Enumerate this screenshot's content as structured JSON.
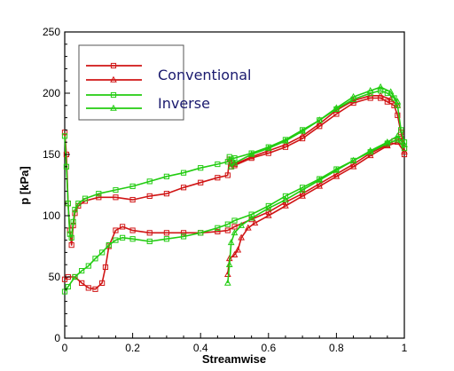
{
  "chart_data": {
    "type": "line",
    "xlabel": "Streamwise",
    "ylabel": "p [kPa]",
    "xlim": [
      0,
      1
    ],
    "ylim": [
      0,
      250
    ],
    "xticks": [
      0,
      0.2,
      0.4,
      0.6,
      0.8,
      1
    ],
    "xtick_labels": [
      "0",
      "0.2",
      "0.4",
      "0.6",
      "0.8",
      "1"
    ],
    "yticks": [
      0,
      50,
      100,
      150,
      200,
      250
    ],
    "ytick_labels": [
      "0",
      "50",
      "100",
      "150",
      "200",
      "250"
    ],
    "grid": false,
    "legend_position": "top-left",
    "colors": {
      "Conventional": "#d01515",
      "Inverse": "#22cc11"
    },
    "legend": [
      {
        "label": "Conventional",
        "entries": [
          {
            "color": "#d01515",
            "marker": "square"
          },
          {
            "color": "#d01515",
            "marker": "triangle"
          }
        ]
      },
      {
        "label": "Inverse",
        "entries": [
          {
            "color": "#22cc11",
            "marker": "square"
          },
          {
            "color": "#22cc11",
            "marker": "triangle"
          }
        ]
      }
    ],
    "series": [
      {
        "color": "#d01515",
        "marker": "square",
        "points": [
          [
            0,
            168
          ],
          [
            0.005,
            150
          ],
          [
            0.01,
            110
          ],
          [
            0.015,
            88
          ],
          [
            0.02,
            76
          ],
          [
            0.025,
            92
          ],
          [
            0.03,
            102
          ],
          [
            0.04,
            108
          ],
          [
            0.06,
            112
          ],
          [
            0.1,
            115
          ],
          [
            0.15,
            115
          ],
          [
            0.2,
            113
          ],
          [
            0.25,
            116
          ],
          [
            0.3,
            118
          ],
          [
            0.35,
            123
          ],
          [
            0.4,
            127
          ],
          [
            0.45,
            131
          ],
          [
            0.48,
            133
          ],
          [
            0.485,
            146
          ],
          [
            0.49,
            140
          ],
          [
            0.5,
            141
          ],
          [
            0.55,
            147
          ],
          [
            0.6,
            151
          ],
          [
            0.65,
            156
          ],
          [
            0.7,
            163
          ],
          [
            0.75,
            173
          ],
          [
            0.8,
            183
          ],
          [
            0.85,
            192
          ],
          [
            0.9,
            196
          ],
          [
            0.93,
            196
          ],
          [
            0.95,
            193
          ],
          [
            0.97,
            190
          ],
          [
            0.98,
            182
          ],
          [
            0.99,
            168
          ],
          [
            1.0,
            155
          ]
        ]
      },
      {
        "color": "#d01515",
        "marker": "square",
        "points": [
          [
            0,
            48
          ],
          [
            0.01,
            50
          ],
          [
            0.03,
            50
          ],
          [
            0.05,
            45
          ],
          [
            0.07,
            41
          ],
          [
            0.09,
            40
          ],
          [
            0.11,
            45
          ],
          [
            0.12,
            58
          ],
          [
            0.13,
            75
          ],
          [
            0.15,
            88
          ],
          [
            0.17,
            91
          ],
          [
            0.2,
            88
          ],
          [
            0.25,
            86
          ],
          [
            0.3,
            86
          ],
          [
            0.35,
            86
          ],
          [
            0.4,
            86
          ],
          [
            0.45,
            87
          ],
          [
            0.48,
            88
          ],
          [
            0.5,
            91
          ],
          [
            0.55,
            97
          ],
          [
            0.6,
            103
          ],
          [
            0.65,
            111
          ],
          [
            0.7,
            118
          ],
          [
            0.75,
            126
          ],
          [
            0.8,
            134
          ],
          [
            0.85,
            142
          ],
          [
            0.9,
            151
          ],
          [
            0.95,
            158
          ],
          [
            0.97,
            161
          ],
          [
            0.99,
            163
          ],
          [
            1.0,
            150
          ]
        ]
      },
      {
        "color": "#d01515",
        "marker": "triangle",
        "points": [
          [
            0.48,
            52
          ],
          [
            0.485,
            65
          ],
          [
            0.5,
            68
          ],
          [
            0.51,
            72
          ],
          [
            0.52,
            82
          ],
          [
            0.54,
            90
          ],
          [
            0.56,
            94
          ],
          [
            0.6,
            100
          ],
          [
            0.65,
            108
          ],
          [
            0.7,
            116
          ],
          [
            0.75,
            124
          ],
          [
            0.8,
            132
          ],
          [
            0.85,
            140
          ],
          [
            0.9,
            149
          ],
          [
            0.95,
            157
          ],
          [
            0.98,
            160
          ],
          [
            1.0,
            152
          ]
        ]
      },
      {
        "color": "#d01515",
        "marker": "triangle",
        "points": [
          [
            0.49,
            143
          ],
          [
            0.5,
            142
          ],
          [
            0.55,
            148
          ],
          [
            0.6,
            153
          ],
          [
            0.65,
            158
          ],
          [
            0.7,
            165
          ],
          [
            0.75,
            175
          ],
          [
            0.8,
            186
          ],
          [
            0.85,
            194
          ],
          [
            0.9,
            198
          ],
          [
            0.93,
            198
          ],
          [
            0.96,
            195
          ],
          [
            0.98,
            190
          ]
        ]
      },
      {
        "color": "#22cc11",
        "marker": "square",
        "points": [
          [
            0,
            165
          ],
          [
            0.005,
            140
          ],
          [
            0.01,
            110
          ],
          [
            0.015,
            85
          ],
          [
            0.02,
            82
          ],
          [
            0.025,
            95
          ],
          [
            0.03,
            105
          ],
          [
            0.04,
            110
          ],
          [
            0.06,
            114
          ],
          [
            0.1,
            118
          ],
          [
            0.15,
            121
          ],
          [
            0.2,
            124
          ],
          [
            0.25,
            128
          ],
          [
            0.3,
            132
          ],
          [
            0.35,
            135
          ],
          [
            0.4,
            139
          ],
          [
            0.45,
            142
          ],
          [
            0.48,
            144
          ],
          [
            0.485,
            148
          ],
          [
            0.49,
            146
          ],
          [
            0.5,
            147
          ],
          [
            0.55,
            151
          ],
          [
            0.6,
            156
          ],
          [
            0.65,
            162
          ],
          [
            0.7,
            170
          ],
          [
            0.75,
            178
          ],
          [
            0.8,
            187
          ],
          [
            0.85,
            195
          ],
          [
            0.9,
            200
          ],
          [
            0.93,
            202
          ],
          [
            0.95,
            200
          ],
          [
            0.97,
            196
          ],
          [
            0.98,
            190
          ],
          [
            0.99,
            170
          ],
          [
            1.0,
            160
          ]
        ]
      },
      {
        "color": "#22cc11",
        "marker": "square",
        "points": [
          [
            0,
            38
          ],
          [
            0.01,
            42
          ],
          [
            0.03,
            50
          ],
          [
            0.05,
            55
          ],
          [
            0.07,
            59
          ],
          [
            0.09,
            65
          ],
          [
            0.11,
            70
          ],
          [
            0.13,
            76
          ],
          [
            0.15,
            80
          ],
          [
            0.17,
            82
          ],
          [
            0.2,
            81
          ],
          [
            0.25,
            79
          ],
          [
            0.3,
            81
          ],
          [
            0.35,
            83
          ],
          [
            0.4,
            86
          ],
          [
            0.45,
            90
          ],
          [
            0.48,
            93
          ],
          [
            0.5,
            96
          ],
          [
            0.55,
            101
          ],
          [
            0.6,
            108
          ],
          [
            0.65,
            116
          ],
          [
            0.7,
            123
          ],
          [
            0.75,
            130
          ],
          [
            0.8,
            138
          ],
          [
            0.85,
            145
          ],
          [
            0.9,
            152
          ],
          [
            0.95,
            159
          ],
          [
            0.98,
            162
          ],
          [
            1.0,
            155
          ]
        ]
      },
      {
        "color": "#22cc11",
        "marker": "triangle",
        "points": [
          [
            0.48,
            45
          ],
          [
            0.485,
            60
          ],
          [
            0.49,
            78
          ],
          [
            0.5,
            86
          ],
          [
            0.52,
            92
          ],
          [
            0.55,
            98
          ],
          [
            0.6,
            106
          ],
          [
            0.65,
            113
          ],
          [
            0.7,
            121
          ],
          [
            0.75,
            129
          ],
          [
            0.8,
            137
          ],
          [
            0.85,
            145
          ],
          [
            0.9,
            153
          ],
          [
            0.95,
            160
          ],
          [
            0.98,
            165
          ],
          [
            1.0,
            158
          ]
        ]
      },
      {
        "color": "#22cc11",
        "marker": "triangle",
        "points": [
          [
            0.49,
            140
          ],
          [
            0.5,
            143
          ],
          [
            0.55,
            150
          ],
          [
            0.6,
            155
          ],
          [
            0.65,
            161
          ],
          [
            0.7,
            169
          ],
          [
            0.75,
            178
          ],
          [
            0.8,
            188
          ],
          [
            0.85,
            197
          ],
          [
            0.9,
            202
          ],
          [
            0.93,
            205
          ],
          [
            0.96,
            201
          ],
          [
            0.98,
            193
          ]
        ]
      }
    ]
  }
}
